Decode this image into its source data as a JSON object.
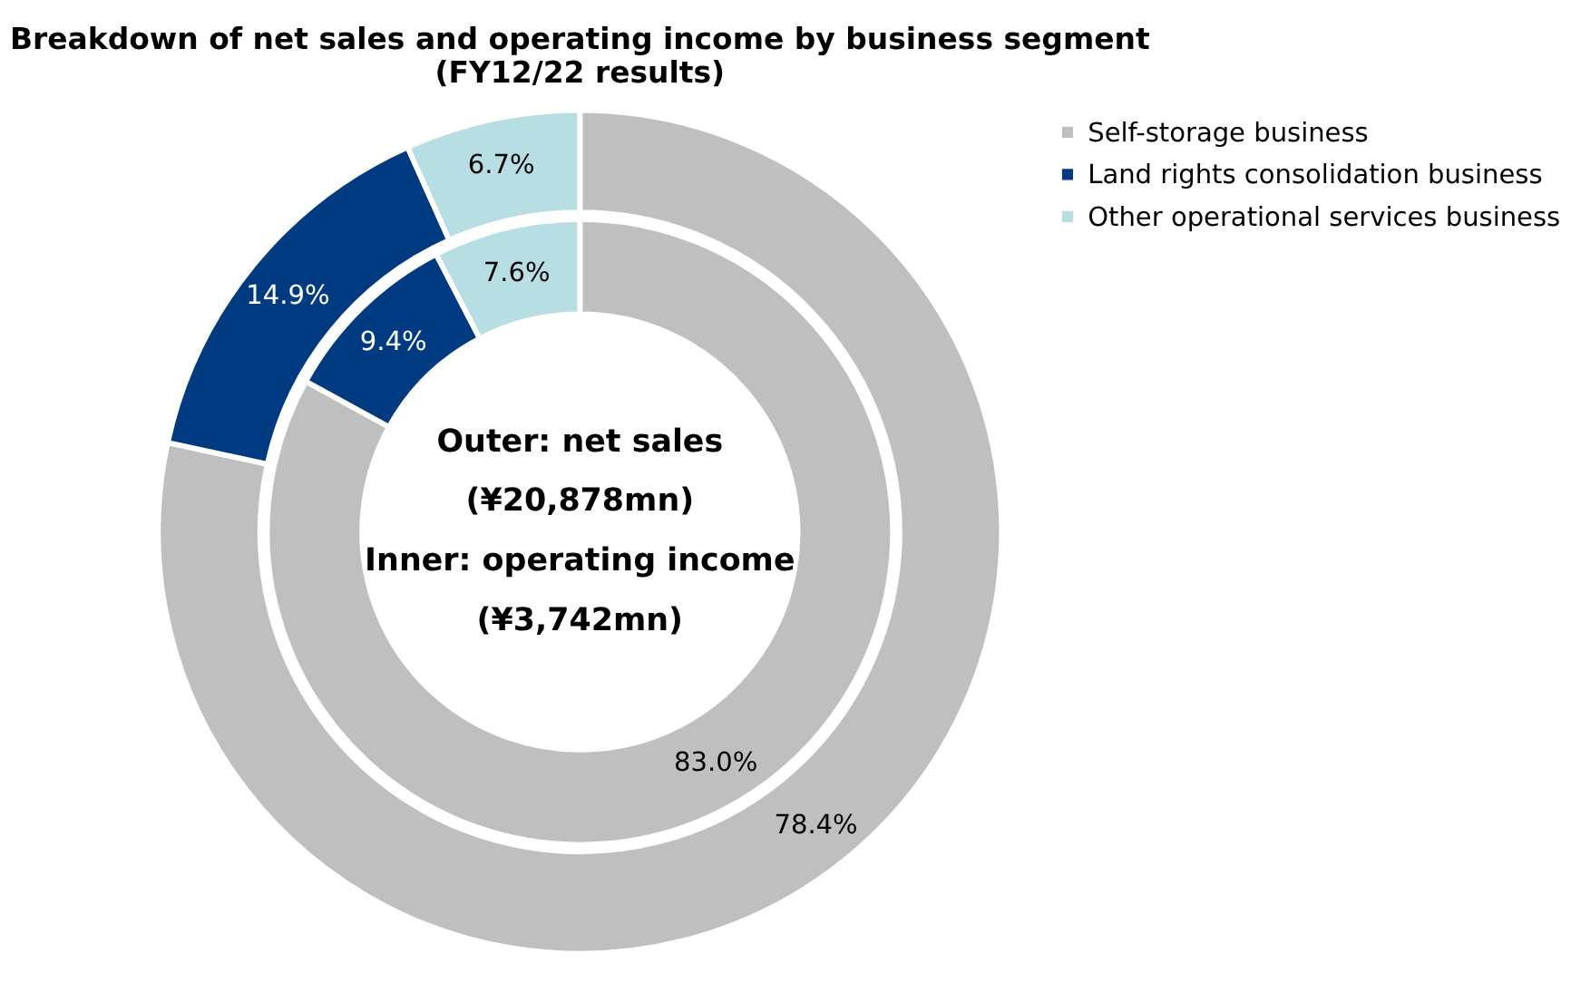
{
  "chart_data": {
    "type": "donut",
    "title": "Breakdown of net sales and operating income by business segment\n(FY12/22 results)",
    "categories": [
      "Self-storage business",
      "Land rights consolidation business",
      "Other operational services business"
    ],
    "colors": [
      "#bfbfbf",
      "#003a80",
      "#b7dfe3"
    ],
    "legend": "right",
    "annotations": [
      "Outer: net sales",
      "(¥20,878mn)",
      "Inner: operating income",
      "(¥3,742mn)"
    ],
    "series": [
      {
        "values": [
          83.0,
          9.4,
          7.6
        ],
        "value_labels": [
          "83.0%",
          "9.4%",
          "7.6%"
        ]
      },
      {
        "values": [
          78.4,
          14.9,
          6.7
        ],
        "value_labels": [
          "78.4%",
          "14.9%",
          "6.7%"
        ]
      }
    ]
  }
}
